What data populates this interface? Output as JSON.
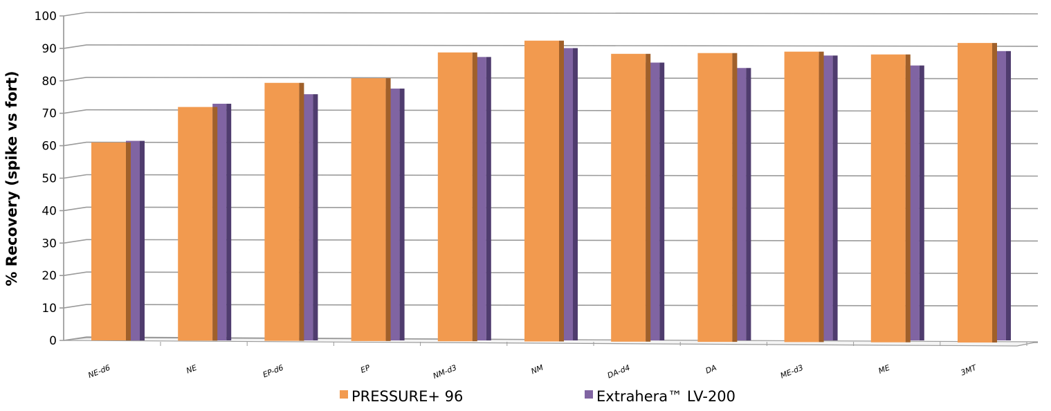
{
  "chart_data": {
    "type": "bar",
    "style": "3d-clustered-column",
    "title": "",
    "xlabel": "",
    "ylabel": "% Recovery (spike vs fort)",
    "ylim": [
      0,
      100
    ],
    "yticks": [
      0,
      10,
      20,
      30,
      40,
      50,
      60,
      70,
      80,
      90,
      100
    ],
    "grid": true,
    "legend_position": "bottom",
    "categories": [
      "NE-d6",
      "NE",
      "EP-d6",
      "EP",
      "NM-d3",
      "NM",
      "DA-d4",
      "DA",
      "ME-d3",
      "ME",
      "3MT"
    ],
    "series": [
      {
        "name": "PRESSURE+ 96",
        "color": "#f29a4f",
        "values": [
          61,
          72,
          79.5,
          81,
          89,
          92.7,
          88.7,
          89,
          89.5,
          88.7,
          92.3
        ]
      },
      {
        "name": "Extrahera™ LV-200",
        "color": "#8064a2",
        "values": [
          61.5,
          73,
          76,
          77.8,
          87.6,
          90.4,
          86,
          84.4,
          88.3,
          85.3,
          89.8
        ]
      }
    ]
  }
}
